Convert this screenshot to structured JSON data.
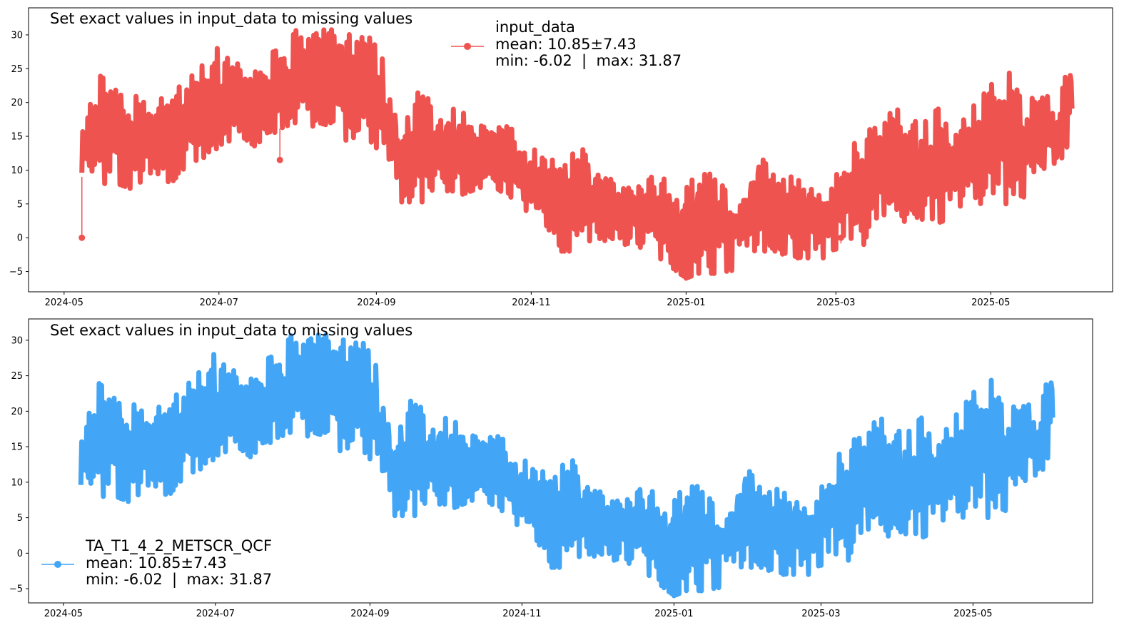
{
  "chart_data": [
    {
      "type": "line",
      "title": "Set exact values in input_data to missing values",
      "xlabel": "",
      "ylabel": "",
      "x_ticks": [
        "2024-05",
        "2024-07",
        "2024-09",
        "2024-11",
        "2025-01",
        "2025-03",
        "2025-05"
      ],
      "y_ticks": [
        -5,
        0,
        5,
        10,
        15,
        20,
        25,
        30
      ],
      "xlim": [
        "2024-04-17",
        "2025-06-18"
      ],
      "ylim": [
        -8,
        34
      ],
      "grid": false,
      "legend_position": "top-center",
      "series": [
        {
          "name": "input_data",
          "legend_lines": [
            "input_data",
            "mean: 10.85±7.43",
            "min: -6.02  |  max: 31.87"
          ],
          "color": "#ef5350",
          "marker": "circle",
          "envelope": {
            "x": [
              "2024-05-08",
              "2024-05-15",
              "2024-05-22",
              "2024-05-29",
              "2024-06-05",
              "2024-06-12",
              "2024-06-19",
              "2024-06-26",
              "2024-07-03",
              "2024-07-10",
              "2024-07-17",
              "2024-07-24",
              "2024-07-31",
              "2024-08-07",
              "2024-08-14",
              "2024-08-21",
              "2024-08-28",
              "2024-09-04",
              "2024-09-11",
              "2024-09-18",
              "2024-09-25",
              "2024-10-02",
              "2024-10-09",
              "2024-10-16",
              "2024-10-23",
              "2024-10-30",
              "2024-11-06",
              "2024-11-13",
              "2024-11-20",
              "2024-11-27",
              "2024-12-04",
              "2024-12-11",
              "2024-12-18",
              "2024-12-25",
              "2025-01-01",
              "2025-01-08",
              "2025-01-15",
              "2025-01-22",
              "2025-01-29",
              "2025-02-05",
              "2025-02-12",
              "2025-02-19",
              "2025-02-26",
              "2025-03-05",
              "2025-03-12",
              "2025-03-19",
              "2025-03-26",
              "2025-04-02",
              "2025-04-09",
              "2025-04-16",
              "2025-04-23",
              "2025-04-30",
              "2025-05-07",
              "2025-05-14",
              "2025-05-21",
              "2025-05-28",
              "2025-06-02"
            ],
            "upper": [
              17,
              24,
              22,
              21,
              19,
              24,
              23,
              28,
              28,
              25,
              26,
              28,
              31,
              31,
              31,
              30,
              31,
              27,
              16,
              22,
              19,
              20,
              17,
              16,
              17,
              14,
              12,
              11,
              14,
              10,
              9,
              8,
              9,
              9,
              8,
              11,
              8,
              7,
              14,
              9,
              9,
              9,
              8,
              13,
              15,
              18,
              19,
              17,
              20,
              18,
              19,
              22,
              26,
              22,
              22,
              20,
              28
            ],
            "lower": [
              9,
              8,
              8,
              7,
              10,
              8,
              11,
              12,
              14,
              15,
              13,
              16,
              17,
              16,
              17,
              14,
              15,
              12,
              5,
              5,
              7,
              6,
              7,
              8,
              6,
              4,
              2,
              -2,
              -2,
              0,
              -1,
              -1,
              -2,
              -4,
              -6,
              -5,
              -6,
              -4,
              -2,
              -2,
              -3,
              -3,
              -3,
              0,
              -1,
              2,
              2,
              3,
              2,
              3,
              5,
              5,
              5,
              6,
              7,
              11,
              15
            ]
          },
          "gap_filled_values": [
            {
              "x": "2024-05-08",
              "y": 0
            },
            {
              "x": "2024-07-25",
              "y": 11.5
            },
            {
              "x": "2025-03-03",
              "y": 0
            }
          ]
        }
      ]
    },
    {
      "type": "line",
      "title": "Set exact values in input_data to missing values",
      "xlabel": "",
      "ylabel": "",
      "x_ticks": [
        "2024-05",
        "2024-07",
        "2024-09",
        "2024-11",
        "2025-01",
        "2025-03",
        "2025-05"
      ],
      "y_ticks": [
        -5,
        0,
        5,
        10,
        15,
        20,
        25,
        30
      ],
      "xlim": [
        "2024-04-17",
        "2025-06-18"
      ],
      "ylim": [
        -7,
        33
      ],
      "grid": false,
      "legend_position": "lower-left",
      "series": [
        {
          "name": "TA_T1_4_2_METSCR_QCF",
          "legend_lines": [
            "TA_T1_4_2_METSCR_QCF",
            "mean: 10.85±7.43",
            "min: -6.02  |  max: 31.87"
          ],
          "color": "#42a5f5",
          "marker": "circle",
          "envelope": {
            "x": [
              "2024-05-08",
              "2024-05-15",
              "2024-05-22",
              "2024-05-29",
              "2024-06-05",
              "2024-06-12",
              "2024-06-19",
              "2024-06-26",
              "2024-07-03",
              "2024-07-10",
              "2024-07-17",
              "2024-07-24",
              "2024-07-31",
              "2024-08-07",
              "2024-08-14",
              "2024-08-21",
              "2024-08-28",
              "2024-09-04",
              "2024-09-11",
              "2024-09-18",
              "2024-09-25",
              "2024-10-02",
              "2024-10-09",
              "2024-10-16",
              "2024-10-23",
              "2024-10-30",
              "2024-11-06",
              "2024-11-13",
              "2024-11-20",
              "2024-11-27",
              "2024-12-04",
              "2024-12-11",
              "2024-12-18",
              "2024-12-25",
              "2025-01-01",
              "2025-01-08",
              "2025-01-15",
              "2025-01-22",
              "2025-01-29",
              "2025-02-05",
              "2025-02-12",
              "2025-02-19",
              "2025-02-26",
              "2025-03-05",
              "2025-03-12",
              "2025-03-19",
              "2025-03-26",
              "2025-04-02",
              "2025-04-09",
              "2025-04-16",
              "2025-04-23",
              "2025-04-30",
              "2025-05-07",
              "2025-05-14",
              "2025-05-21",
              "2025-05-28",
              "2025-06-02"
            ],
            "upper": [
              17,
              24,
              22,
              21,
              19,
              24,
              23,
              28,
              28,
              25,
              26,
              28,
              31,
              31,
              31,
              30,
              31,
              27,
              16,
              22,
              19,
              20,
              17,
              16,
              17,
              14,
              12,
              11,
              14,
              10,
              9,
              8,
              9,
              9,
              8,
              11,
              8,
              7,
              14,
              9,
              9,
              9,
              8,
              13,
              15,
              18,
              19,
              17,
              20,
              18,
              19,
              22,
              26,
              22,
              22,
              20,
              28
            ],
            "lower": [
              9,
              8,
              8,
              7,
              10,
              8,
              11,
              12,
              14,
              15,
              13,
              16,
              17,
              16,
              17,
              14,
              15,
              12,
              5,
              5,
              7,
              6,
              7,
              8,
              6,
              4,
              2,
              -2,
              -2,
              0,
              -1,
              -1,
              -2,
              -4,
              -6,
              -5,
              -6,
              -4,
              -2,
              -2,
              -3,
              -3,
              -3,
              0,
              -1,
              2,
              2,
              3,
              2,
              3,
              5,
              5,
              5,
              6,
              7,
              11,
              15
            ]
          }
        }
      ]
    }
  ]
}
